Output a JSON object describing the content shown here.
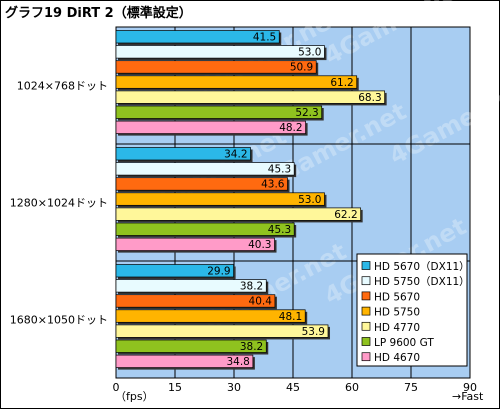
{
  "chart_data": {
    "type": "bar",
    "orientation": "horizontal",
    "title": "グラフ19  DiRT 2（標準設定）",
    "xlabel": "（fps）",
    "xlabel_right": "→Fast",
    "xlim": [
      0,
      90
    ],
    "xticks": [
      0,
      15,
      30,
      45,
      60,
      75,
      90
    ],
    "grid": true,
    "legend_position": "bottom-right",
    "plot_background": "#a8cdf2",
    "watermark": "4Gamer.net",
    "categories": [
      "1024×768ドット",
      "1280×1024ドット",
      "1680×1050ドット"
    ],
    "series": [
      {
        "name": "HD 5670（DX11）",
        "color": "#2bb8e8",
        "values": [
          41.5,
          34.2,
          29.9
        ]
      },
      {
        "name": "HD 5750（DX11）",
        "color": "#e8fbff",
        "values": [
          53.0,
          45.3,
          38.2
        ]
      },
      {
        "name": "HD 5670",
        "color": "#ff6a10",
        "values": [
          50.9,
          43.6,
          40.4
        ]
      },
      {
        "name": "HD 5750",
        "color": "#ffb400",
        "values": [
          61.2,
          53.0,
          48.1
        ]
      },
      {
        "name": "HD 4770",
        "color": "#fff79a",
        "values": [
          68.3,
          62.2,
          53.9
        ]
      },
      {
        "name": "LP 9600 GT",
        "color": "#8fc21f",
        "values": [
          52.3,
          45.3,
          38.2
        ]
      },
      {
        "name": "HD 4670",
        "color": "#ff9bc8",
        "values": [
          48.2,
          40.3,
          34.8
        ]
      }
    ]
  }
}
